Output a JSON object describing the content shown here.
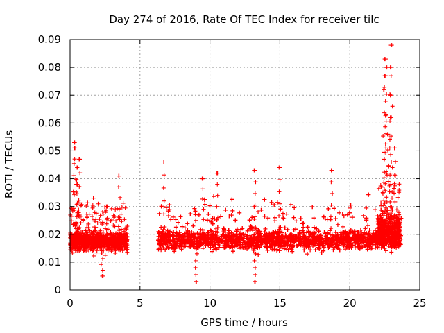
{
  "chart_data": {
    "type": "scatter",
    "title": "Day 274 of 2016, Rate Of TEC Index for receiver tilc",
    "xlabel": "GPS time / hours",
    "ylabel": "ROTI / TECUs",
    "xlim": [
      0,
      25
    ],
    "ylim": [
      0,
      0.09
    ],
    "grid": true,
    "marker": "plus",
    "color": "#ff0000",
    "x_ticks": [
      "0",
      "5",
      "10",
      "15",
      "20",
      "25"
    ],
    "x_tick_values": [
      0,
      5,
      10,
      15,
      20,
      25
    ],
    "y_ticks": [
      "0",
      "0.01",
      "0.02",
      "0.03",
      "0.04",
      "0.05",
      "0.06",
      "0.07",
      "0.08",
      "0.09"
    ],
    "y_tick_values": [
      0,
      0.01,
      0.02,
      0.03,
      0.04,
      0.05,
      0.06,
      0.07,
      0.08,
      0.09
    ],
    "series": [
      {
        "name": "ROTI",
        "description_of_segments": "dense clouds of points within GPS-time windows",
        "segments": [
          {
            "x_range": [
              0.0,
              4.1
            ],
            "y_center": 0.0175,
            "y_spread": 0.006,
            "peaks": [
              [
                0.3,
                0.053
              ],
              [
                0.35,
                0.051
              ],
              [
                0.5,
                0.044
              ],
              [
                0.45,
                0.038
              ],
              [
                0.65,
                0.047
              ],
              [
                1.7,
                0.033
              ],
              [
                2.6,
                0.03
              ],
              [
                3.5,
                0.041
              ],
              [
                2.3,
                0.005
              ]
            ]
          },
          {
            "x_range": [
              6.3,
              23.7
            ],
            "y_center": 0.018,
            "y_spread": 0.006,
            "peaks": [
              [
                6.7,
                0.046
              ],
              [
                9.5,
                0.04
              ],
              [
                10.5,
                0.042
              ],
              [
                13.2,
                0.043
              ],
              [
                15.0,
                0.044
              ],
              [
                18.7,
                0.043
              ],
              [
                13.2,
                0.003
              ],
              [
                9.0,
                0.003
              ]
            ]
          },
          {
            "x_range": [
              22.0,
              23.6
            ],
            "y_center": 0.022,
            "y_spread": 0.01,
            "peaks": [
              [
                22.5,
                0.083
              ],
              [
                22.6,
                0.08
              ],
              [
                22.5,
                0.077
              ],
              [
                22.45,
                0.072
              ],
              [
                23.0,
                0.088
              ],
              [
                22.9,
                0.08
              ],
              [
                22.9,
                0.07
              ],
              [
                22.6,
                0.063
              ],
              [
                22.9,
                0.062
              ],
              [
                22.7,
                0.056
              ],
              [
                23.2,
                0.051
              ]
            ]
          }
        ]
      }
    ]
  }
}
